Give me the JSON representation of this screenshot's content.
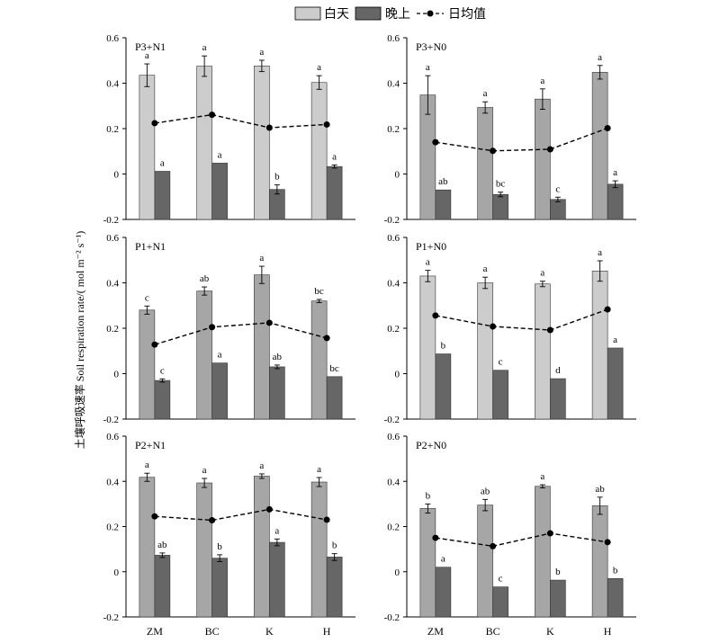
{
  "legend": {
    "day_label": "白天",
    "night_label": "晚上",
    "mean_label": "日均值"
  },
  "y_axis_label": "土壤呼吸速率 Soil respiration rate/( mol m⁻² s⁻¹)",
  "colors": {
    "day_light": "#cccccc",
    "day_mid": "#a6a6a6",
    "night": "#666666",
    "mean_line": "#000000"
  },
  "chart_data": [
    {
      "type": "bar",
      "panel_label": "P3+N1",
      "categories": [
        "ZM",
        "BC",
        "K",
        "H"
      ],
      "ylim": [
        -0.2,
        0.6
      ],
      "yticks": [
        "-0.2",
        "0",
        "0.2",
        "0.4",
        "0.6"
      ],
      "day_shade": "light",
      "series": [
        {
          "name": "白天",
          "values": [
            0.435,
            0.475,
            0.476,
            0.403
          ],
          "errors": [
            0.05,
            0.045,
            0.025,
            0.03
          ],
          "letters": [
            "a",
            "a",
            "a",
            "a"
          ]
        },
        {
          "name": "晚上",
          "values": [
            0.012,
            0.048,
            -0.068,
            0.033
          ],
          "errors": [
            0.0,
            0.0,
            0.02,
            0.007
          ],
          "letters": [
            "a",
            "a",
            "b",
            "a"
          ]
        },
        {
          "name": "日均值",
          "values": [
            0.224,
            0.261,
            0.204,
            0.218
          ]
        }
      ]
    },
    {
      "type": "bar",
      "panel_label": "P3+N0",
      "categories": [
        "ZM",
        "BC",
        "K",
        "H"
      ],
      "ylim": [
        -0.2,
        0.6
      ],
      "yticks": [
        "-0.2",
        "0",
        "0.2",
        "0.4",
        "0.6"
      ],
      "day_shade": "mid",
      "series": [
        {
          "name": "白天",
          "values": [
            0.348,
            0.293,
            0.33,
            0.448
          ],
          "errors": [
            0.085,
            0.025,
            0.045,
            0.03
          ],
          "letters": [
            "a",
            "a",
            "a",
            "a"
          ]
        },
        {
          "name": "晚上",
          "values": [
            -0.07,
            -0.09,
            -0.112,
            -0.045
          ],
          "errors": [
            0.0,
            0.01,
            0.01,
            0.015
          ],
          "letters": [
            "ab",
            "bc",
            "c",
            "a"
          ]
        },
        {
          "name": "日均值",
          "values": [
            0.14,
            0.102,
            0.109,
            0.202
          ]
        }
      ]
    },
    {
      "type": "bar",
      "panel_label": "P1+N1",
      "categories": [
        "ZM",
        "BC",
        "K",
        "H"
      ],
      "ylim": [
        -0.2,
        0.6
      ],
      "yticks": [
        "-0.2",
        "0",
        "0.2",
        "0.4",
        "0.6"
      ],
      "day_shade": "mid",
      "series": [
        {
          "name": "白天",
          "values": [
            0.28,
            0.364,
            0.435,
            0.32
          ],
          "errors": [
            0.018,
            0.018,
            0.038,
            0.007
          ],
          "letters": [
            "c",
            "ab",
            "a",
            "bc"
          ]
        },
        {
          "name": "晚上",
          "values": [
            -0.03,
            0.047,
            0.03,
            -0.013
          ],
          "errors": [
            0.007,
            0.0,
            0.008,
            0.0
          ],
          "letters": [
            "c",
            "a",
            "ab",
            "bc"
          ]
        },
        {
          "name": "日均值",
          "values": [
            0.128,
            0.205,
            0.224,
            0.157
          ]
        }
      ]
    },
    {
      "type": "bar",
      "panel_label": "P1+N0",
      "categories": [
        "ZM",
        "BC",
        "K",
        "H"
      ],
      "ylim": [
        -0.2,
        0.6
      ],
      "yticks": [
        "-0.2",
        "0",
        "0.2",
        "0.4",
        "0.6"
      ],
      "day_shade": "light",
      "series": [
        {
          "name": "白天",
          "values": [
            0.43,
            0.4,
            0.395,
            0.452
          ],
          "errors": [
            0.025,
            0.025,
            0.012,
            0.045
          ],
          "letters": [
            "a",
            "a",
            "a",
            "a"
          ]
        },
        {
          "name": "晚上",
          "values": [
            0.087,
            0.015,
            -0.022,
            0.113
          ],
          "errors": [
            0.0,
            0.0,
            0.0,
            0.0
          ],
          "letters": [
            "b",
            "c",
            "d",
            "a"
          ]
        },
        {
          "name": "日均值",
          "values": [
            0.256,
            0.208,
            0.192,
            0.283
          ]
        }
      ]
    },
    {
      "type": "bar",
      "panel_label": "P2+N1",
      "categories": [
        "ZM",
        "BC",
        "K",
        "H"
      ],
      "ylim": [
        -0.2,
        0.6
      ],
      "yticks": [
        "-0.2",
        "0",
        "0.2",
        "0.4",
        "0.6"
      ],
      "day_shade": "mid",
      "series": [
        {
          "name": "白天",
          "values": [
            0.418,
            0.393,
            0.423,
            0.397
          ],
          "errors": [
            0.018,
            0.02,
            0.01,
            0.02
          ],
          "letters": [
            "a",
            "a",
            "a",
            "a"
          ]
        },
        {
          "name": "晚上",
          "values": [
            0.073,
            0.06,
            0.13,
            0.065
          ],
          "errors": [
            0.01,
            0.015,
            0.015,
            0.015
          ],
          "letters": [
            "ab",
            "b",
            "a",
            "b"
          ]
        },
        {
          "name": "日均值",
          "values": [
            0.245,
            0.228,
            0.276,
            0.23
          ]
        }
      ]
    },
    {
      "type": "bar",
      "panel_label": "P2+N0",
      "categories": [
        "ZM",
        "BC",
        "K",
        "H"
      ],
      "ylim": [
        -0.2,
        0.6
      ],
      "yticks": [
        "-0.2",
        "0",
        "0.2",
        "0.4",
        "0.6"
      ],
      "day_shade": "mid",
      "series": [
        {
          "name": "白天",
          "values": [
            0.28,
            0.295,
            0.378,
            0.292
          ],
          "errors": [
            0.02,
            0.025,
            0.007,
            0.038
          ],
          "letters": [
            "b",
            "ab",
            "a",
            "ab"
          ]
        },
        {
          "name": "晚上",
          "values": [
            0.02,
            -0.067,
            -0.037,
            -0.03
          ],
          "errors": [
            0.0,
            0.0,
            0.0,
            0.0
          ],
          "letters": [
            "a",
            "c",
            "b",
            "b"
          ]
        },
        {
          "name": "日均值",
          "values": [
            0.15,
            0.113,
            0.17,
            0.131
          ]
        }
      ]
    }
  ]
}
